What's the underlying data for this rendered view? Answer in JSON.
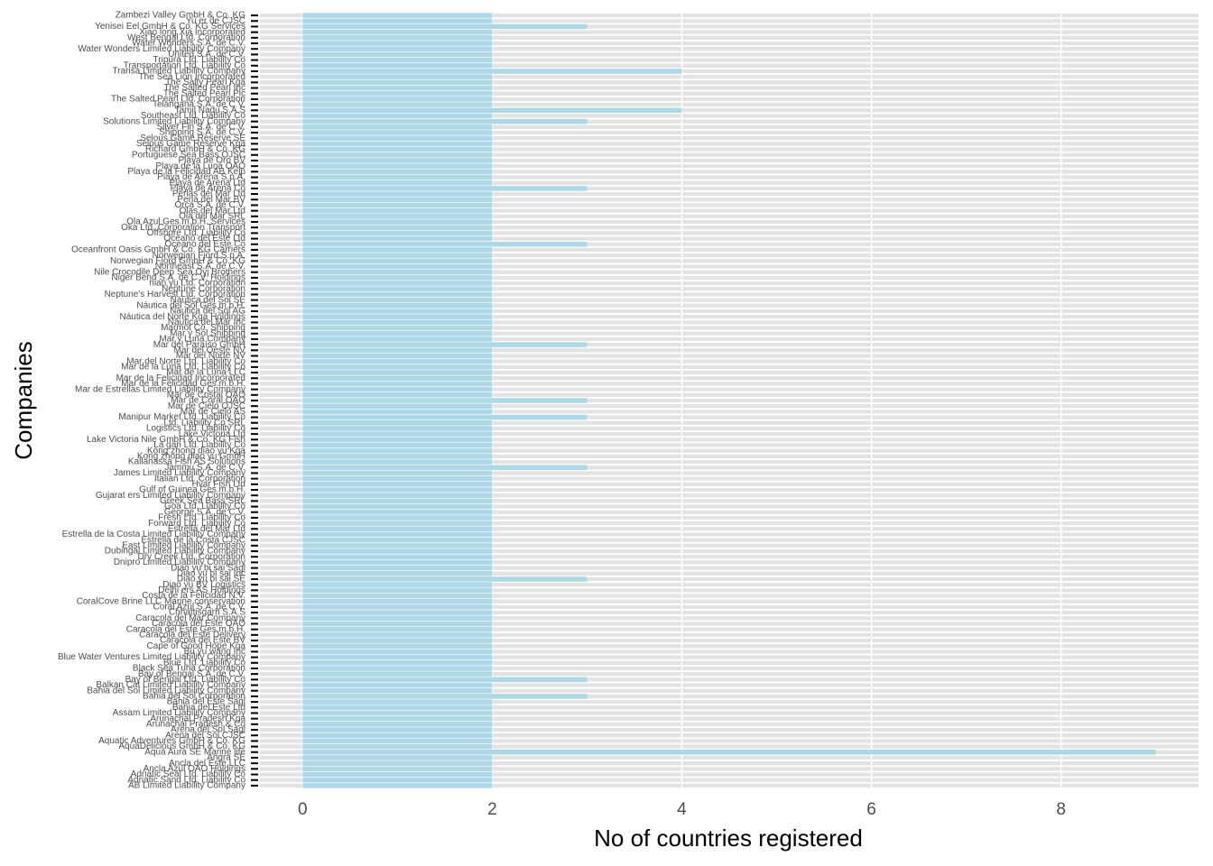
{
  "chart_data": {
    "type": "bar",
    "orientation": "horizontal",
    "xlabel": "No of countries registered",
    "ylabel": "Companies",
    "color": "#add8e6",
    "categories": [
      "AB Limited Liability Company",
      "Adriatic Sand Ltd. Liability Co",
      "Adriatic Seal Ltd. Liability Co",
      "Ancla Azul OAO Holdings",
      "Ancla del Este LLC",
      "Angra SE",
      "Aqua Aura SE Marine life",
      "AquaDelicious GmbH & Co. KG",
      "Aquatic Adventures GmbH & Co. KG",
      "Arena del Sol CJSC",
      "Arena del Sol Sagl",
      "Arunachal Pradesh & Co",
      "Arunachal Pradesh Kga",
      "Assam Limited Liability Company",
      "Bahia del Este Ltd",
      "Bahia del Este Sagl",
      "Bahia del Sol Corporation",
      "Bahia del Sol Limited Liability Company",
      "Balkan Cat Limited Liability Company",
      "Bay of Bengal Ltd. Liability Co",
      "Bay of Bengal S.A. de C.V.",
      "Black Sea Tuna Corporation",
      "Blue Ltd. Liability Co",
      "Blue Water Ventures Limited Liability Company",
      "Bu yu wang Inc",
      "Cape of Good Hope Kga",
      "Caracola del Este BV",
      "Caracola del Este Delivery",
      "Caracola del Este Ges.m.b.H.",
      "Caracola del Este OAO",
      "Caracola del Mar Company",
      "Chhattisgarh S.A.S",
      "Coral Azul S.A. de C.V.",
      "CoralCove Brine LLC Marine conservation",
      "Costa de la Felicidad N.V.",
      "Delhi ers AS Holdings",
      "Diao yu BV Logistics",
      "Diao yu bi sai SE",
      "Diao yu bi sai Inc",
      "Diao yu bi sai Sagl",
      "Dnipro Limited Liability Company",
      "Dry Creek Ltd. Corporation",
      "Dubingal Limited Liability Company",
      "East Limited Liability Company",
      "Estrella de la Costa CJSC",
      "Estrella de la Costa Limited Liability Company",
      "Estrella del Mar Ltd",
      "Forward Ltd. Liability Co",
      "Fresh Ltd. Liability Co",
      "George S.A. de C.V.",
      "Goa Ltd. Liability Co",
      "Greek Sea Bass SRL",
      "Gujarat ers Limited Liability Company",
      "Gulf of Guinea Ges.m.b.H.",
      "Hvar Fish Ltd",
      "Italian Ltd. Corporation",
      "James Limited Liability Company",
      "Jammu S.A. de C.V.",
      "Kallanassa Fish AS Solutions",
      "Kong zhong diao yu GmbH",
      "Kong zhong diao yu Kga",
      "La gan Ltd. Liability Co",
      "Lake Victoria Nile GmbH & Co. KG Fish",
      "Lake Victoria Ltd",
      "Logistics Ltd. Liability Co",
      "Ltd. Liability Co SRL",
      "Manipur Market Ltd. Liability Co",
      "Mar de Cielo AS",
      "Mar de Cielo OJSC",
      "Mar de Coral OAO",
      "Mar de Cristal OAO",
      "Mar de Estrellas Limited Liability Company",
      "Mar de la Felicidad Ges.m.b.H.",
      "Mar de la Felicidad Incorporated",
      "Mar de la Luna LLC",
      "Mar de la Luna Ltd. Liability Co",
      "Mar del Norte Ltd. Liability Co",
      "Mar del Norte NV",
      "Mar del Oeste NV",
      "Mar del Paraíso GmbH",
      "Mar y Luna Company",
      "Mar y Sol Shipping",
      "Marmot Co. Shipping",
      "Náutica del Mar Inc",
      "Náutica del Norte Kga Holdings",
      "Náutica del Sol AG",
      "Náutica del Sol Ges.m.b.H.",
      "Náutica del Sol SE",
      "Neptune's Harvest Ltd. Corporation",
      "Neptune Corporation",
      "nian yu Ltd. Corporation",
      "Niger Bend S.A. de C.V. Holdings",
      "Nile Crocodile Deep Sea Oyj Brothers",
      "Northeast S.A. de C.V.",
      "Norwegian Fjord GmbH & Co. KG",
      "Norwegian Fjord S.p.A.",
      "Oceanfront Oasis GmbH & Co. KG Carriers",
      "Oceano del Este Co",
      "Oceano del Este Ltd",
      "Offshore Ltd. Liability Co",
      "Oka Ltd. Corporation Transport",
      "Ola Azul Ges.m.b.H. Services",
      "Ola del Mar SRL",
      "Olas del Mar Ltd",
      "Orca S.A. de C.V.",
      "Perla del Mar BV",
      "Perlas del Mar Ltd",
      "Playa de Arena Co",
      "Playa de Arena Ltd",
      "Playa de Arena S.p.A.",
      "Playa de la Felicidad AB Kelp",
      "Playa de la Luna OAO",
      "Playa de Oro BV",
      "Portuguese Sea Bass OJSC",
      "Richard GmbH & Co. KG",
      "Selous Game Reserve Kga",
      "Selous Game Reserve SE",
      "Shipping S.A. de C.V.",
      "Silver Fin S.A. de C.V.",
      "Solutions Limited Liability Company",
      "Southeast Ltd. Liability Co",
      "Tamil Nadu S.A.S",
      "Telangana S.A. de C.V.",
      "The Salted Pearl Ltd. Corporation",
      "The Salted Pearl Plc",
      "The Salted Pearl Inc",
      "The Salty Pearl Kga",
      "The Sea Lion Incorporated",
      "Transa Limited Liability Company",
      "Transportation Ltd. Liability Co",
      "Tripura Ltd. Liability Co",
      "United S.A. de C.V.",
      "Water Wonders Limited Liability Company",
      "Water Wonders S.A. de C.V.",
      "West Bengal Ltd. Corporation",
      "Xiao long Xia Incorporated",
      "Yenisei Eel GmbH & Co. KG Services",
      "Yu er de CJSC",
      "Zambezi Valley GmbH & Co. KG"
    ],
    "values": [
      2,
      2,
      2,
      2,
      2,
      2,
      9,
      2,
      2,
      2,
      2,
      2,
      2,
      2,
      2,
      2,
      3,
      2,
      2,
      3,
      2,
      2,
      2,
      2,
      2,
      2,
      2,
      2,
      2,
      2,
      2,
      2,
      2,
      2,
      2,
      2,
      2,
      3,
      2,
      2,
      2,
      2,
      2,
      2,
      2,
      2,
      2,
      2,
      2,
      2,
      2,
      2,
      2,
      2,
      2,
      2,
      2,
      3,
      2,
      2,
      2,
      2,
      2,
      2,
      2,
      2,
      3,
      2,
      2,
      3,
      2,
      2,
      2,
      2,
      2,
      2,
      2,
      2,
      2,
      3,
      2,
      2,
      2,
      2,
      2,
      2,
      2,
      2,
      2,
      2,
      2,
      2,
      2,
      2,
      2,
      2,
      2,
      3,
      2,
      2,
      2,
      2,
      2,
      2,
      2,
      2,
      2,
      3,
      2,
      2,
      2,
      2,
      2,
      2,
      2,
      2,
      2,
      2,
      2,
      3,
      2,
      4,
      2,
      2,
      2,
      2,
      2,
      2,
      4,
      2,
      2,
      2,
      2,
      2,
      2,
      2,
      3,
      2,
      2
    ],
    "xlim": [
      -0.45,
      9.45
    ],
    "xticks": [
      0,
      2,
      4,
      6,
      8
    ],
    "grid": true
  }
}
